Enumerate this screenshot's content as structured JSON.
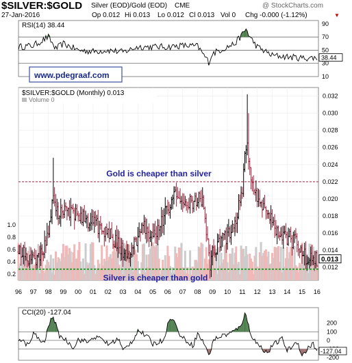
{
  "header": {
    "symbol": "$SILVER:$GOLD",
    "description": "Silver (EOD)/Gold (EOD)",
    "exchange": "CME",
    "watermark": "@ StockCharts.com",
    "date": "27-Jan-2016",
    "quote": {
      "op": "Op 0.012",
      "hi": "Hi 0.013",
      "lo": "Lo 0.012",
      "cl": "Cl 0.013",
      "vol": "Vol 0",
      "chg": "Chg -0.000 (-1.12%)"
    }
  },
  "website": "www.pdegraaf.com",
  "chart_data": [
    {
      "type": "line",
      "panel": "rsi",
      "legend": "RSI(14) 38.44",
      "current_value_label": "38.44",
      "ylim": [
        10,
        95
      ],
      "yticks": [
        10,
        30,
        50,
        70,
        90
      ],
      "reference_lines": [
        30,
        50,
        70
      ],
      "x": [
        1996,
        1997,
        1998,
        1998.5,
        1999,
        2000,
        2001,
        2002,
        2003,
        2004,
        2005,
        2006,
        2007,
        2008,
        2008.75,
        2009,
        2010,
        2010.5,
        2011,
        2011.25,
        2011.5,
        2012,
        2013,
        2014,
        2015,
        2016
      ],
      "values": [
        55,
        57,
        70,
        52,
        60,
        50,
        48,
        50,
        47,
        55,
        55,
        55,
        57,
        56,
        32,
        45,
        55,
        60,
        74,
        82,
        70,
        55,
        42,
        40,
        38,
        38.44
      ],
      "colors": {
        "line": "#000000",
        "overbought_fill": "#4f7f4f",
        "oversold_fill": "#a07070"
      }
    },
    {
      "type": "bar",
      "panel": "price",
      "legend": "$SILVER:$GOLD (Monthly) 0.013",
      "legend_volume": "Volume 0",
      "x_tick_labels": [
        "96",
        "97",
        "98",
        "99",
        "00",
        "01",
        "02",
        "03",
        "04",
        "05",
        "06",
        "07",
        "08",
        "09",
        "10",
        "11",
        "12",
        "13",
        "14",
        "15",
        "16"
      ],
      "xlim": [
        1996,
        2016.1
      ],
      "ylim": [
        0.0105,
        0.033
      ],
      "yticks": [
        0.012,
        0.014,
        0.016,
        0.018,
        0.02,
        0.022,
        0.024,
        0.026,
        0.028,
        0.03,
        0.032
      ],
      "volume_axis_ticks": [
        "0.2",
        "0.4",
        "0.6",
        "0.8",
        "1.0"
      ],
      "last_value_label": "0.013",
      "x": [
        1996,
        1996.5,
        1997,
        1997.5,
        1998,
        1998.3,
        1998.6,
        1999,
        1999.5,
        2000,
        2000.5,
        2001,
        2001.5,
        2002,
        2002.5,
        2003,
        2003.5,
        2004,
        2004.3,
        2004.6,
        2005,
        2005.5,
        2006,
        2006.5,
        2007,
        2007.5,
        2008,
        2008.3,
        2008.6,
        2008.85,
        2009,
        2009.5,
        2010,
        2010.5,
        2011,
        2011.3,
        2011.6,
        2012,
        2012.5,
        2013,
        2013.5,
        2014,
        2014.5,
        2015,
        2015.5,
        2016
      ],
      "values": [
        0.0138,
        0.0134,
        0.0128,
        0.0138,
        0.0155,
        0.0198,
        0.0182,
        0.019,
        0.0186,
        0.018,
        0.0176,
        0.0172,
        0.0165,
        0.0164,
        0.015,
        0.0138,
        0.0138,
        0.0152,
        0.017,
        0.016,
        0.016,
        0.017,
        0.019,
        0.0202,
        0.0196,
        0.0198,
        0.0198,
        0.02,
        0.016,
        0.012,
        0.0138,
        0.015,
        0.0158,
        0.0168,
        0.0215,
        0.027,
        0.0215,
        0.0205,
        0.019,
        0.0175,
        0.016,
        0.0155,
        0.015,
        0.0135,
        0.013,
        0.013
      ],
      "reference_lines": [
        {
          "value": 0.022,
          "label": "Gold is cheaper than silver",
          "style": "dashed",
          "color": "#a0203a"
        },
        {
          "value": 0.0118,
          "label": "Silver is cheaper than gold",
          "style": "dashed",
          "color": "#2a9a2a"
        }
      ],
      "colors": {
        "up": "#000000",
        "down": "#a0203a",
        "volume_up": "#cccccc",
        "volume_down": "#f2b8b8",
        "annotation_text": "#2222a0"
      }
    },
    {
      "type": "line",
      "panel": "cci",
      "legend": "CCI(20) -127.04",
      "current_value_label": "-127.04",
      "ylim": [
        -230,
        380
      ],
      "ytick_labels": [
        "-200",
        "-100",
        "0",
        "100",
        "200"
      ],
      "yticks": [
        -200,
        -100,
        0,
        100,
        200
      ],
      "reference_lines": [
        -100,
        0,
        100
      ],
      "x": [
        1996,
        1996.7,
        1997,
        1997.7,
        1998,
        1998.3,
        1998.7,
        1999,
        1999.7,
        2000,
        2000.7,
        2001,
        2001.7,
        2002,
        2002.7,
        2003,
        2003.7,
        2004,
        2004.7,
        2005,
        2005.7,
        2006,
        2006.3,
        2006.7,
        2007,
        2007.7,
        2008,
        2008.6,
        2008.8,
        2009,
        2009.7,
        2010,
        2010.7,
        2011,
        2011.2,
        2011.6,
        2012,
        2012.7,
        2013,
        2013.7,
        2014,
        2014.7,
        2015,
        2015.7,
        2016
      ],
      "values": [
        20,
        -60,
        80,
        -40,
        150,
        300,
        60,
        30,
        -80,
        10,
        -20,
        40,
        10,
        -50,
        20,
        -120,
        10,
        120,
        30,
        -40,
        0,
        180,
        280,
        100,
        30,
        -60,
        80,
        -80,
        -210,
        0,
        60,
        70,
        130,
        220,
        310,
        60,
        -40,
        -150,
        -60,
        20,
        -120,
        -10,
        -180,
        -30,
        -127.04
      ],
      "colors": {
        "line": "#000000",
        "positive_fill": "#4f7f4f",
        "negative_fill": "#a07070"
      }
    }
  ]
}
